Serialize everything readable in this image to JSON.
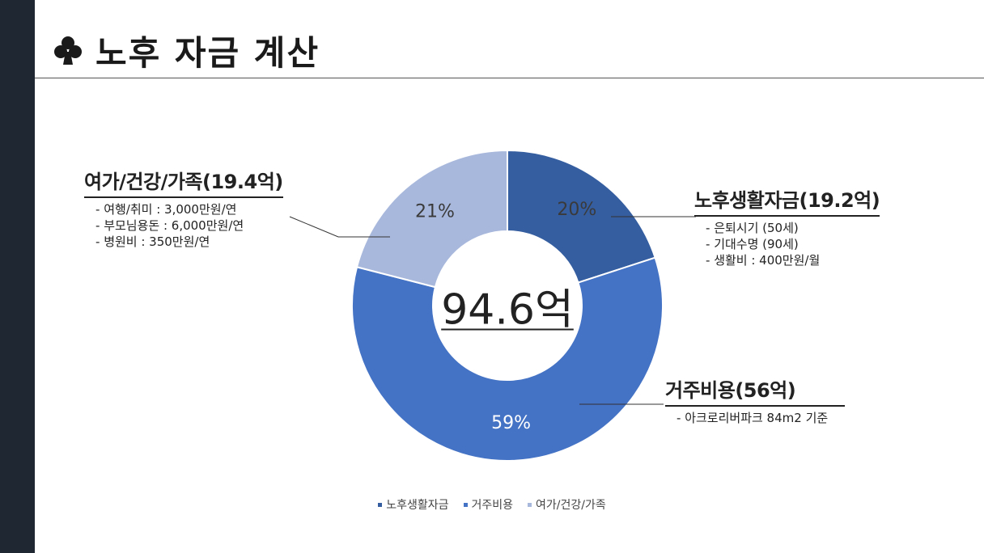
{
  "page": {
    "title": "노후 자금 계산",
    "title_icon": "club-suit-icon"
  },
  "colors": {
    "sidebar": "#1f2733",
    "slice_1": "#355ea1",
    "slice_2": "#4472c4",
    "slice_3": "#a8b8dc"
  },
  "chart_data": {
    "type": "pie",
    "variant": "donut",
    "center_label": "94.6억",
    "slices": [
      {
        "name": "노후생활자금",
        "value": 20,
        "label": "20%",
        "color": "#355ea1"
      },
      {
        "name": "거주비용",
        "value": 59,
        "label": "59%",
        "color": "#4472c4"
      },
      {
        "name": "여가/건강/가족",
        "value": 21,
        "label": "21%",
        "color": "#a8b8dc"
      }
    ],
    "legend_position": "bottom",
    "legend": [
      "노후생활자금",
      "거주비용",
      "여가/건강/가족"
    ]
  },
  "callouts": {
    "retirement": {
      "title": "노후생활자금(19.2억)",
      "items": [
        "은퇴시기 (50세)",
        "기대수명 (90세)",
        "생활비 : 400만원/월"
      ]
    },
    "housing": {
      "title": "거주비용(56억)",
      "items": [
        "아크로리버파크 84m2 기준"
      ]
    },
    "leisure": {
      "title": "여가/건강/가족(19.4억)",
      "items": [
        "여행/취미 : 3,000만원/연",
        "부모님용돈 : 6,000만원/연",
        "병원비 : 350만원/연"
      ]
    }
  }
}
